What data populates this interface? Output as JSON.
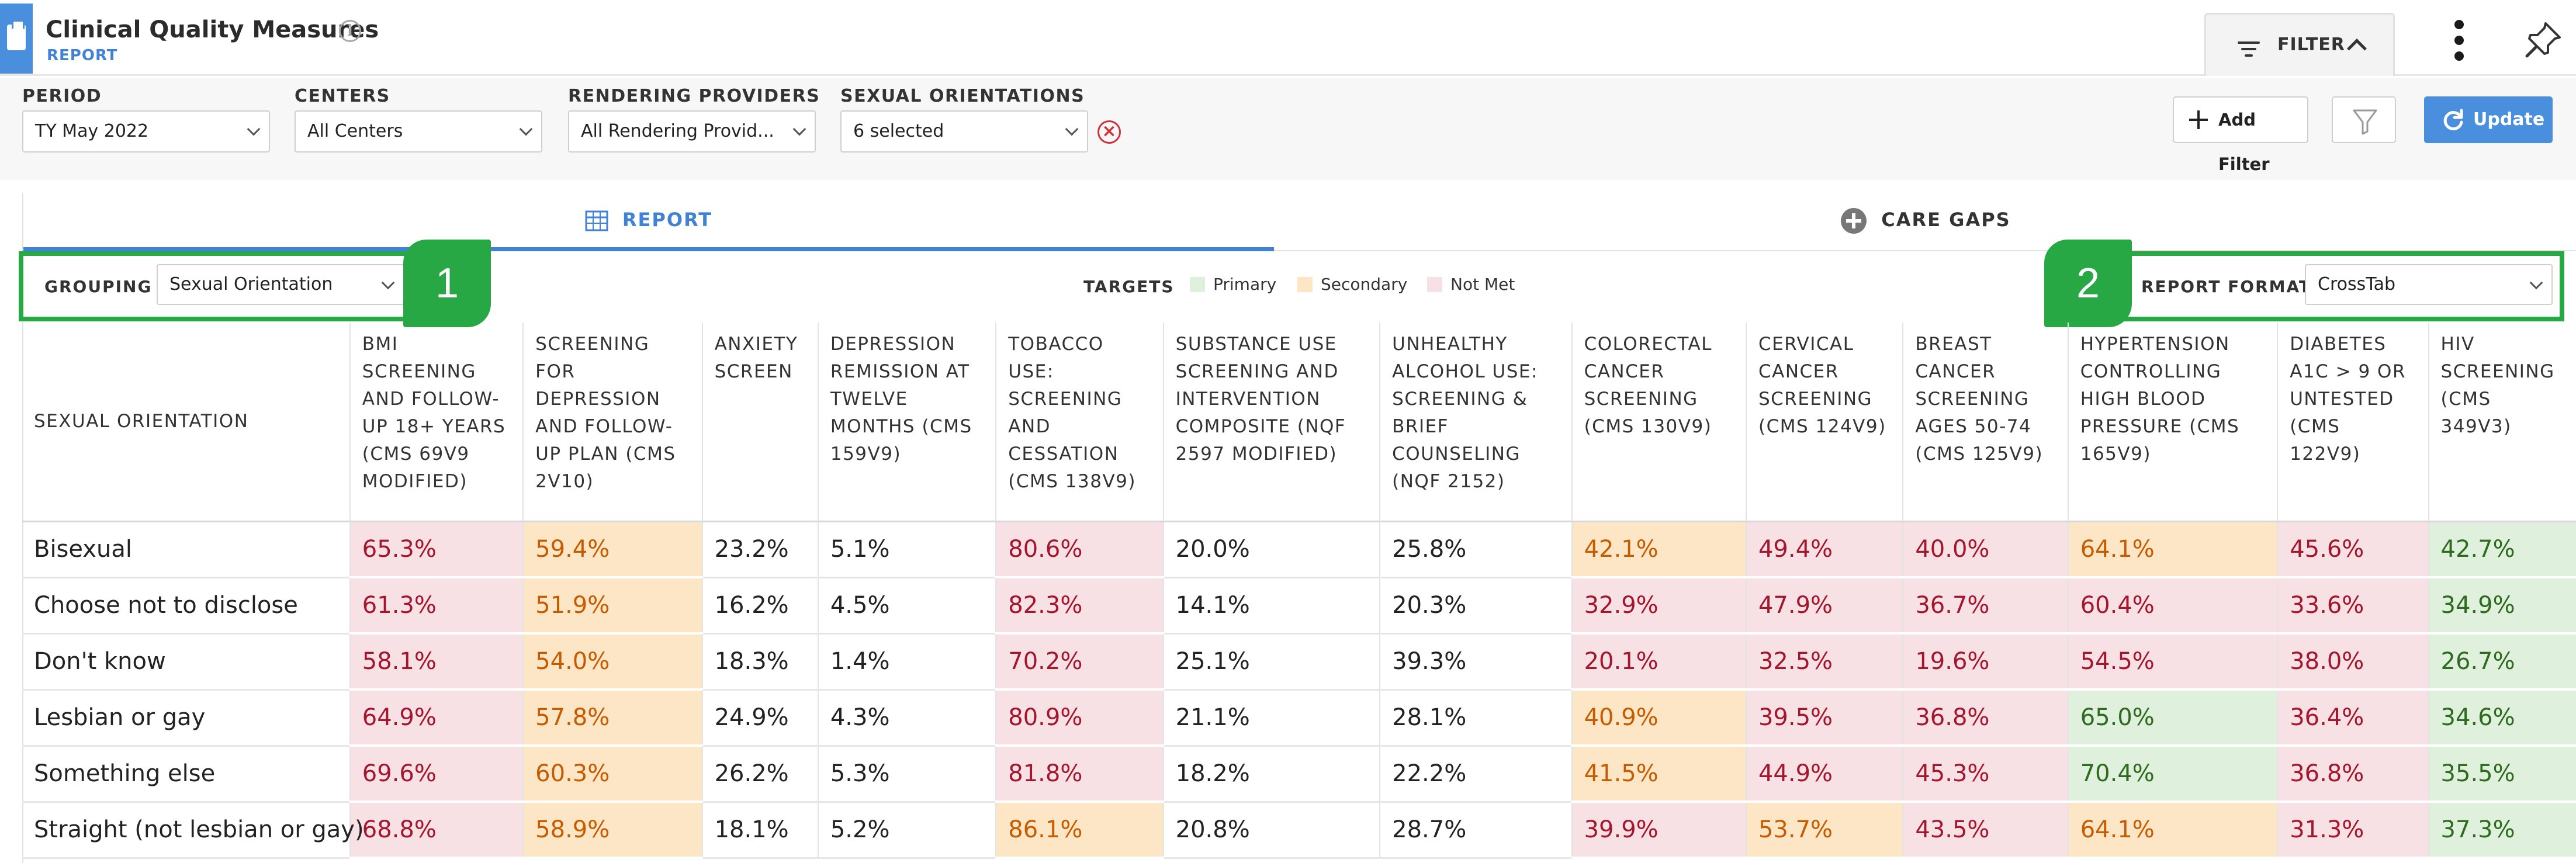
{
  "header": {
    "title": "Clinical Quality Measures",
    "subtitle": "REPORT",
    "filter_toggle": "FILTER"
  },
  "filters": {
    "period": {
      "label": "PERIOD",
      "value": "TY May 2022"
    },
    "centers": {
      "label": "CENTERS",
      "value": "All Centers"
    },
    "providers": {
      "label": "RENDERING PROVIDERS",
      "value": "All Rendering Provid..."
    },
    "orientations": {
      "label": "SEXUAL ORIENTATIONS",
      "value": "6 selected"
    },
    "add_filter": "Add Filter",
    "update": "Update"
  },
  "tabs": [
    {
      "label": "REPORT",
      "icon": "table-icon"
    },
    {
      "label": "CARE GAPS",
      "icon": "plus-circle-icon"
    }
  ],
  "grouping": {
    "label": "GROUPING",
    "value": "Sexual Orientation"
  },
  "targets": {
    "label": "TARGETS",
    "items": [
      {
        "label": "Primary",
        "color": "#dff1dd"
      },
      {
        "label": "Secondary",
        "color": "#fde6c6"
      },
      {
        "label": "Not Met",
        "color": "#f8e1e4"
      }
    ]
  },
  "report_format": {
    "label": "REPORT FORMAT",
    "value": "CrossTab"
  },
  "callouts": [
    "1",
    "2"
  ],
  "table": {
    "row_header": "SEXUAL ORIENTATION",
    "columns": [
      "BMI SCREENING AND FOLLOW-UP 18+ YEARS (CMS 69V9 MODIFIED)",
      "SCREENING FOR DEPRESSION AND FOLLOW-UP PLAN (CMS 2V10)",
      "ANXIETY SCREEN",
      "DEPRESSION REMISSION AT TWELVE MONTHS (CMS 159V9)",
      "TOBACCO USE: SCREENING AND CESSATION (CMS 138V9)",
      "SUBSTANCE USE SCREENING AND INTERVENTION COMPOSITE (NQF 2597 MODIFIED)",
      "UNHEALTHY ALCOHOL USE: SCREENING & BRIEF COUNSELING (NQF 2152)",
      "COLORECTAL CANCER SCREENING (CMS 130V9)",
      "CERVICAL CANCER SCREENING (CMS 124V9)",
      "BREAST CANCER SCREENING AGES 50-74 (CMS 125V9)",
      "HYPERTENSION CONTROLLING HIGH BLOOD PRESSURE (CMS 165V9)",
      "DIABETES A1C > 9 OR UNTESTED (CMS 122V9)",
      "HIV SCREENING (CMS 349V3)"
    ],
    "rows": [
      {
        "name": "Bisexual",
        "cells": [
          {
            "v": "65.3%",
            "s": "notmet"
          },
          {
            "v": "59.4%",
            "s": "secondary"
          },
          {
            "v": "23.2%",
            "s": "plain"
          },
          {
            "v": "5.1%",
            "s": "plain"
          },
          {
            "v": "80.6%",
            "s": "notmet"
          },
          {
            "v": "20.0%",
            "s": "plain"
          },
          {
            "v": "25.8%",
            "s": "plain"
          },
          {
            "v": "42.1%",
            "s": "secondary"
          },
          {
            "v": "49.4%",
            "s": "notmet"
          },
          {
            "v": "40.0%",
            "s": "notmet"
          },
          {
            "v": "64.1%",
            "s": "secondary"
          },
          {
            "v": "45.6%",
            "s": "notmet"
          },
          {
            "v": "42.7%",
            "s": "primary"
          }
        ]
      },
      {
        "name": "Choose not to disclose",
        "cells": [
          {
            "v": "61.3%",
            "s": "notmet"
          },
          {
            "v": "51.9%",
            "s": "secondary"
          },
          {
            "v": "16.2%",
            "s": "plain"
          },
          {
            "v": "4.5%",
            "s": "plain"
          },
          {
            "v": "82.3%",
            "s": "notmet"
          },
          {
            "v": "14.1%",
            "s": "plain"
          },
          {
            "v": "20.3%",
            "s": "plain"
          },
          {
            "v": "32.9%",
            "s": "notmet"
          },
          {
            "v": "47.9%",
            "s": "notmet"
          },
          {
            "v": "36.7%",
            "s": "notmet"
          },
          {
            "v": "60.4%",
            "s": "notmet"
          },
          {
            "v": "33.6%",
            "s": "notmet"
          },
          {
            "v": "34.9%",
            "s": "primary"
          }
        ]
      },
      {
        "name": "Don't know",
        "cells": [
          {
            "v": "58.1%",
            "s": "notmet"
          },
          {
            "v": "54.0%",
            "s": "secondary"
          },
          {
            "v": "18.3%",
            "s": "plain"
          },
          {
            "v": "1.4%",
            "s": "plain"
          },
          {
            "v": "70.2%",
            "s": "notmet"
          },
          {
            "v": "25.1%",
            "s": "plain"
          },
          {
            "v": "39.3%",
            "s": "plain"
          },
          {
            "v": "20.1%",
            "s": "notmet"
          },
          {
            "v": "32.5%",
            "s": "notmet"
          },
          {
            "v": "19.6%",
            "s": "notmet"
          },
          {
            "v": "54.5%",
            "s": "notmet"
          },
          {
            "v": "38.0%",
            "s": "notmet"
          },
          {
            "v": "26.7%",
            "s": "primary"
          }
        ]
      },
      {
        "name": "Lesbian or gay",
        "cells": [
          {
            "v": "64.9%",
            "s": "notmet"
          },
          {
            "v": "57.8%",
            "s": "secondary"
          },
          {
            "v": "24.9%",
            "s": "plain"
          },
          {
            "v": "4.3%",
            "s": "plain"
          },
          {
            "v": "80.9%",
            "s": "notmet"
          },
          {
            "v": "21.1%",
            "s": "plain"
          },
          {
            "v": "28.1%",
            "s": "plain"
          },
          {
            "v": "40.9%",
            "s": "secondary"
          },
          {
            "v": "39.5%",
            "s": "notmet"
          },
          {
            "v": "36.8%",
            "s": "notmet"
          },
          {
            "v": "65.0%",
            "s": "primary"
          },
          {
            "v": "36.4%",
            "s": "notmet"
          },
          {
            "v": "34.6%",
            "s": "primary"
          }
        ]
      },
      {
        "name": "Something else",
        "cells": [
          {
            "v": "69.6%",
            "s": "notmet"
          },
          {
            "v": "60.3%",
            "s": "secondary"
          },
          {
            "v": "26.2%",
            "s": "plain"
          },
          {
            "v": "5.3%",
            "s": "plain"
          },
          {
            "v": "81.8%",
            "s": "notmet"
          },
          {
            "v": "18.2%",
            "s": "plain"
          },
          {
            "v": "22.2%",
            "s": "plain"
          },
          {
            "v": "41.5%",
            "s": "secondary"
          },
          {
            "v": "44.9%",
            "s": "notmet"
          },
          {
            "v": "45.3%",
            "s": "notmet"
          },
          {
            "v": "70.4%",
            "s": "primary"
          },
          {
            "v": "36.8%",
            "s": "notmet"
          },
          {
            "v": "35.5%",
            "s": "primary"
          }
        ]
      },
      {
        "name": "Straight (not lesbian or gay)",
        "cells": [
          {
            "v": "68.8%",
            "s": "notmet"
          },
          {
            "v": "58.9%",
            "s": "secondary"
          },
          {
            "v": "18.1%",
            "s": "plain"
          },
          {
            "v": "5.2%",
            "s": "plain"
          },
          {
            "v": "86.1%",
            "s": "secondary"
          },
          {
            "v": "20.8%",
            "s": "plain"
          },
          {
            "v": "28.7%",
            "s": "plain"
          },
          {
            "v": "39.9%",
            "s": "notmet"
          },
          {
            "v": "53.7%",
            "s": "secondary"
          },
          {
            "v": "43.5%",
            "s": "notmet"
          },
          {
            "v": "64.1%",
            "s": "secondary"
          },
          {
            "v": "31.3%",
            "s": "notmet"
          },
          {
            "v": "37.3%",
            "s": "primary"
          }
        ]
      }
    ]
  }
}
